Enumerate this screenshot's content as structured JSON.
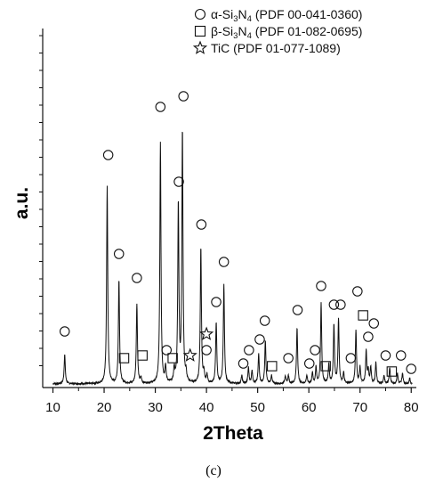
{
  "chart_data": {
    "type": "line",
    "xlabel": "2Theta",
    "ylabel": "a.u.",
    "xlim": [
      8,
      81
    ],
    "x_ticks": [
      "10",
      "20",
      "30",
      "40",
      "50",
      "60",
      "70",
      "80"
    ],
    "panel_label": "(c)",
    "legend": [
      {
        "marker": "circle",
        "text": "α-Si",
        "sub": "3",
        "mid": "N",
        "sub2": "4",
        "tail": " (PDF 00-041-0360)"
      },
      {
        "marker": "square",
        "text": "β-Si",
        "sub": "3",
        "mid": "N",
        "sub2": "4",
        "tail": " (PDF 01-082-0695)"
      },
      {
        "marker": "star",
        "text": "TiC (PDF 01-077-1089)",
        "sub": "",
        "mid": "",
        "sub2": "",
        "tail": ""
      }
    ],
    "series": [
      {
        "peaks": [
          [
            12.3,
            0.11
          ],
          [
            20.6,
            0.74
          ],
          [
            22.9,
            0.39
          ],
          [
            26.4,
            0.3
          ],
          [
            27.2,
            0.02
          ],
          [
            31.0,
            0.9
          ],
          [
            32.0,
            0.06
          ],
          [
            33.7,
            0.05
          ],
          [
            34.5,
            0.67
          ],
          [
            35.3,
            0.94
          ],
          [
            36.0,
            0.03
          ],
          [
            38.9,
            0.51
          ],
          [
            39.5,
            0.04
          ],
          [
            40.1,
            0.03
          ],
          [
            41.9,
            0.23
          ],
          [
            43.4,
            0.37
          ],
          [
            46.9,
            0.03
          ],
          [
            48.2,
            0.06
          ],
          [
            48.9,
            0.05
          ],
          [
            50.2,
            0.11
          ],
          [
            51.5,
            0.16
          ],
          [
            52.7,
            0.03
          ],
          [
            55.4,
            0.03
          ],
          [
            56.0,
            0.03
          ],
          [
            57.7,
            0.21
          ],
          [
            59.6,
            0.03
          ],
          [
            60.7,
            0.04
          ],
          [
            61.4,
            0.06
          ],
          [
            62.4,
            0.3
          ],
          [
            63.9,
            0.07
          ],
          [
            64.9,
            0.22
          ],
          [
            65.8,
            0.24
          ],
          [
            66.8,
            0.04
          ],
          [
            69.2,
            0.2
          ],
          [
            70.0,
            0.06
          ],
          [
            71.2,
            0.12
          ],
          [
            71.6,
            0.05
          ],
          [
            72.1,
            0.06
          ],
          [
            73.1,
            0.08
          ],
          [
            74.7,
            0.03
          ],
          [
            75.8,
            0.06
          ],
          [
            77.3,
            0.04
          ],
          [
            78.3,
            0.04
          ],
          [
            79.7,
            0.02
          ]
        ]
      }
    ],
    "markers": {
      "circle": [
        [
          12.3,
          0.2
        ],
        [
          20.8,
          0.86
        ],
        [
          22.9,
          0.49
        ],
        [
          26.4,
          0.4
        ],
        [
          31.0,
          1.04
        ],
        [
          32.2,
          0.13
        ],
        [
          34.6,
          0.76
        ],
        [
          35.5,
          1.08
        ],
        [
          39.0,
          0.6
        ],
        [
          40.0,
          0.13
        ],
        [
          41.9,
          0.31
        ],
        [
          43.4,
          0.46
        ],
        [
          47.2,
          0.08
        ],
        [
          48.3,
          0.13
        ],
        [
          50.4,
          0.17
        ],
        [
          51.4,
          0.24
        ],
        [
          56.0,
          0.1
        ],
        [
          57.8,
          0.28
        ],
        [
          60.1,
          0.08
        ],
        [
          61.2,
          0.13
        ],
        [
          62.4,
          0.37
        ],
        [
          64.9,
          0.3
        ],
        [
          66.2,
          0.3
        ],
        [
          68.2,
          0.1
        ],
        [
          69.5,
          0.35
        ],
        [
          71.6,
          0.18
        ],
        [
          72.7,
          0.23
        ],
        [
          75.0,
          0.11
        ],
        [
          78.0,
          0.11
        ],
        [
          80.0,
          0.06
        ]
      ],
      "square": [
        [
          23.9,
          0.1
        ],
        [
          27.5,
          0.11
        ],
        [
          33.4,
          0.1
        ],
        [
          52.8,
          0.07
        ],
        [
          63.3,
          0.07
        ],
        [
          70.6,
          0.26
        ],
        [
          76.2,
          0.05
        ]
      ],
      "star": [
        [
          36.8,
          0.11
        ],
        [
          40.0,
          0.19
        ]
      ]
    }
  }
}
